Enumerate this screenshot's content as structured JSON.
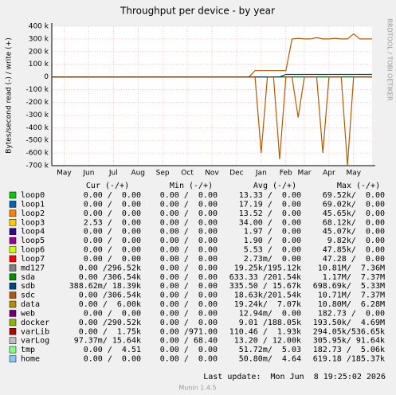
{
  "chart_data": {
    "type": "line",
    "title": "Throughput per device - by year",
    "y_label": "Bytes/second read (-) / write (+)",
    "side_text": "RRDTOOL / TOBI OETIKER",
    "footer": "Last update:  Mon Jun  8 19:25:02 2026",
    "version": "Munin 1.4.5",
    "columns": [
      "Cur (-/+)",
      "Min (-/+)",
      "Avg (-/+)",
      "Max (-/+)"
    ],
    "grid": true,
    "ylim": [
      -700000,
      400000
    ],
    "yticks": [
      {
        "value": 400000,
        "label": "400 k"
      },
      {
        "value": 300000,
        "label": "300 k"
      },
      {
        "value": 200000,
        "label": "200 k"
      },
      {
        "value": 100000,
        "label": "100 k"
      },
      0,
      {
        "value": -100000,
        "label": "-100 k"
      },
      {
        "value": -200000,
        "label": "-200 k"
      },
      {
        "value": -300000,
        "label": "-300 k"
      },
      {
        "value": -400000,
        "label": "-400 k"
      },
      {
        "value": -500000,
        "label": "-500 k"
      },
      {
        "value": -600000,
        "label": "-600 k"
      },
      {
        "value": -700000,
        "label": "-700 k"
      }
    ],
    "categories": [
      null,
      null,
      "May",
      null,
      null,
      null,
      "Jun",
      null,
      null,
      null,
      "Jul",
      null,
      null,
      null,
      "Aug",
      null,
      null,
      null,
      "Sep",
      null,
      null,
      null,
      "Oct",
      null,
      null,
      null,
      "Nov",
      null,
      null,
      null,
      "Dec",
      null,
      null,
      null,
      "Jan",
      null,
      null,
      null,
      "Feb",
      null,
      null,
      "Mar",
      null,
      null,
      null,
      "Apr",
      null,
      null,
      null,
      "May",
      null,
      null,
      null
    ],
    "series": [
      {
        "name": "loop0",
        "color": "#00cc00",
        "cells": [
          "0.00 /  0.00",
          "0.00 /  0.00",
          "13.33 /  0.00",
          "69.52k/  0.00"
        ]
      },
      {
        "name": "loop1",
        "color": "#0066b3",
        "cells": [
          "0.00 /  0.00",
          "0.00 /  0.00",
          "17.19 /  0.00",
          "69.02k/  0.00"
        ]
      },
      {
        "name": "loop2",
        "color": "#ff8000",
        "cells": [
          "0.00 /  0.00",
          "0.00 /  0.00",
          "13.52 /  0.00",
          "45.65k/  0.00"
        ]
      },
      {
        "name": "loop3",
        "color": "#ffcc00",
        "cells": [
          "2.53 /  0.00",
          "0.00 /  0.00",
          "34.00 /  0.00",
          "68.12k/  0.00"
        ]
      },
      {
        "name": "loop4",
        "color": "#330099",
        "cells": [
          "0.00 /  0.00",
          "0.00 /  0.00",
          "1.97 /  0.00",
          "45.07k/  0.00"
        ]
      },
      {
        "name": "loop5",
        "color": "#990099",
        "cells": [
          "0.00 /  0.00",
          "0.00 /  0.00",
          "1.90 /  0.00",
          "9.82k/  0.00"
        ]
      },
      {
        "name": "loop6",
        "color": "#ccff00",
        "cells": [
          "0.00 /  0.00",
          "0.00 /  0.00",
          "5.53 /  0.00",
          "47.85k/  0.00"
        ]
      },
      {
        "name": "loop7",
        "color": "#ff0000",
        "cells": [
          "0.00 /  0.00",
          "0.00 /  0.00",
          "2.73m/  0.00",
          "47.28 /  0.00"
        ]
      },
      {
        "name": "md127",
        "color": "#808080",
        "cells": [
          "0.00 /296.52k",
          "0.00 /  0.00",
          "19.25k/195.12k",
          "10.81M/  7.36M"
        ]
      },
      {
        "name": "sda",
        "color": "#008f00",
        "cells": [
          "0.00 /306.54k",
          "0.00 /  0.00",
          "633.33 /201.54k",
          "1.17M/  7.37M"
        ],
        "values": [
          0,
          0,
          0,
          0,
          0,
          0,
          0,
          0,
          0,
          0,
          0,
          0,
          0,
          0,
          0,
          0,
          0,
          0,
          0,
          0,
          0,
          0,
          0,
          0,
          0,
          0,
          0,
          0,
          0,
          0,
          0,
          0,
          0,
          0,
          0,
          0,
          0,
          0,
          0,
          0,
          0,
          0,
          0,
          0,
          0,
          0,
          0,
          0,
          0,
          0,
          0,
          0,
          0
        ]
      },
      {
        "name": "sdb",
        "color": "#00487d",
        "cells": [
          "388.62m/ 18.39k",
          "0.00 /  0.00",
          "335.50 / 15.67k",
          "698.69k/  5.33M"
        ],
        "values": [
          0,
          0,
          0,
          0,
          0,
          0,
          0,
          0,
          0,
          0,
          0,
          0,
          0,
          0,
          0,
          0,
          0,
          0,
          0,
          0,
          0,
          0,
          0,
          0,
          0,
          0,
          0,
          0,
          0,
          0,
          0,
          0,
          0,
          0,
          0,
          0,
          0,
          0,
          20000,
          20000,
          20000,
          20000,
          20000,
          20000,
          20000,
          20000,
          20000,
          20000,
          20000,
          20000,
          20000,
          20000,
          20000
        ]
      },
      {
        "name": "sdc",
        "color": "#b35a00",
        "cells": [
          "0.00 /306.54k",
          "0.00 /  0.00",
          "18.63k/201.54k",
          "10.71M/  7.37M"
        ],
        "values": [
          0,
          0,
          0,
          0,
          0,
          0,
          0,
          0,
          0,
          0,
          0,
          0,
          0,
          0,
          0,
          0,
          0,
          0,
          0,
          0,
          0,
          0,
          0,
          0,
          0,
          0,
          0,
          0,
          0,
          0,
          0,
          0,
          0,
          50000,
          50000,
          50000,
          50000,
          50000,
          50000,
          300000,
          305000,
          300000,
          300000,
          310000,
          300000,
          300000,
          305000,
          300000,
          300000,
          340000,
          300000,
          300000,
          300000
        ],
        "neg_values": [
          0,
          0,
          0,
          0,
          0,
          0,
          0,
          0,
          0,
          0,
          0,
          0,
          0,
          0,
          0,
          0,
          0,
          0,
          0,
          0,
          0,
          0,
          0,
          0,
          0,
          0,
          0,
          0,
          0,
          0,
          0,
          0,
          0,
          0,
          -600000,
          0,
          0,
          -650000,
          0,
          0,
          -320000,
          0,
          0,
          0,
          -600000,
          0,
          0,
          0,
          -700000,
          0,
          0,
          0,
          0
        ]
      },
      {
        "name": "data",
        "color": "#b38f00",
        "cells": [
          "0.00 /  6.00k",
          "0.00 /  0.00",
          "19.24k/  7.07k",
          "10.80M/  6.28M"
        ]
      },
      {
        "name": "web",
        "color": "#6b006b",
        "cells": [
          "0.00 /  0.00",
          "0.00 /  0.00",
          "12.94m/  0.00",
          "182.73 /  0.00"
        ]
      },
      {
        "name": "docker",
        "color": "#8fb300",
        "cells": [
          "0.00 /290.52k",
          "0.00 /  0.00",
          "9.01 /188.05k",
          "193.50k/  4.69M"
        ]
      },
      {
        "name": "varLib",
        "color": "#b30000",
        "cells": [
          "0.00 /  1.75k",
          "0.00 /971.00",
          "110.46 /  1.93k",
          "294.05k/536.65k"
        ]
      },
      {
        "name": "varLog",
        "color": "#bebebe",
        "cells": [
          "97.37m/ 15.64k",
          "0.00 / 68.40",
          "13.20 / 12.00k",
          "305.95k/ 91.64k"
        ]
      },
      {
        "name": "tmp",
        "color": "#80ff80",
        "cells": [
          "0.00 /  4.51",
          "0.00 /  0.00",
          "51.72m/  5.03",
          "182.73 /  5.06k"
        ]
      },
      {
        "name": "home",
        "color": "#80c9ff",
        "cells": [
          "0.00 /  0.00",
          "0.00 /  0.00",
          "50.80m/  4.64",
          "619.18 /185.37k"
        ]
      }
    ]
  }
}
